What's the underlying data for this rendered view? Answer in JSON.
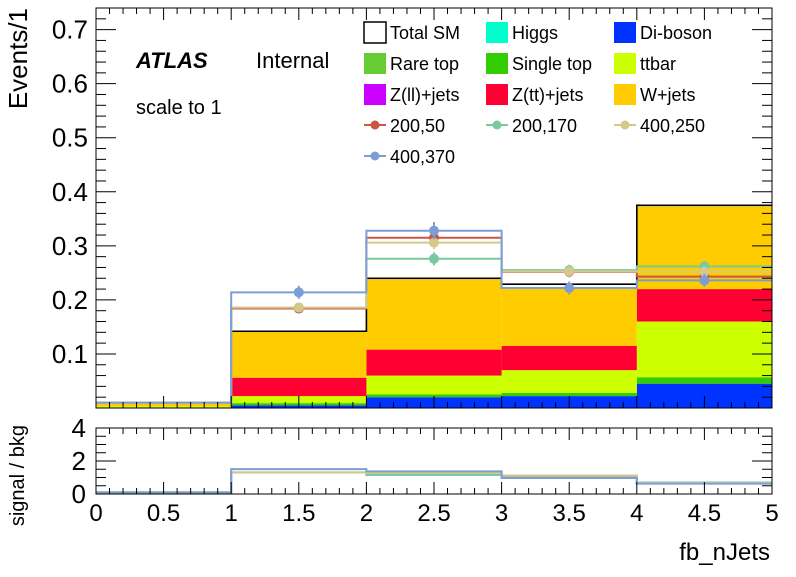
{
  "chart_data": [
    {
      "type": "bar",
      "stacked": true,
      "x_bins": [
        0,
        1,
        2,
        3,
        4,
        5
      ],
      "xlabel": "fb_nJets",
      "ylabel": "Events/1",
      "xlim": [
        0,
        5
      ],
      "ylim": [
        0,
        0.74
      ],
      "y_ticks": [
        "0.1",
        "0.2",
        "0.3",
        "0.4",
        "0.5",
        "0.6",
        "0.7"
      ],
      "texts": {
        "atlas": "ATLAS",
        "internal": "Internal",
        "scale": "scale to 1"
      },
      "legend_placement": "top-right",
      "legend": [
        {
          "label": "Total SM",
          "color": "#ffffff",
          "kind": "box"
        },
        {
          "label": "Higgs",
          "color": "#00ffcc",
          "kind": "box"
        },
        {
          "label": "Di-boson",
          "color": "#0033ff",
          "kind": "box"
        },
        {
          "label": "Rare top",
          "color": "#66cc33",
          "kind": "box"
        },
        {
          "label": "Single top",
          "color": "#33cc00",
          "kind": "box"
        },
        {
          "label": "ttbar",
          "color": "#ccff00",
          "kind": "box"
        },
        {
          "label": "Z(ll)+jets",
          "color": "#cc00ff",
          "kind": "box"
        },
        {
          "label": "Z(tt)+jets",
          "color": "#ff0033",
          "kind": "box"
        },
        {
          "label": "W+jets",
          "color": "#ffcc00",
          "kind": "box"
        },
        {
          "label": "200,50",
          "color": "#cc5544",
          "kind": "marker"
        },
        {
          "label": "200,170",
          "color": "#77c9a0",
          "kind": "marker"
        },
        {
          "label": "400,250",
          "color": "#d4c98a",
          "kind": "marker"
        },
        {
          "label": "400,370",
          "color": "#7b9ed6",
          "kind": "marker"
        }
      ],
      "background_stack": [
        {
          "name": "Di-boson",
          "color": "#0033ff",
          "values": [
            0.0,
            0.005,
            0.02,
            0.022,
            0.045
          ]
        },
        {
          "name": "Single top",
          "color": "#33cc00",
          "values": [
            0.001,
            0.004,
            0.005,
            0.006,
            0.012
          ]
        },
        {
          "name": "ttbar",
          "color": "#ccff00",
          "values": [
            0.002,
            0.013,
            0.035,
            0.042,
            0.103
          ]
        },
        {
          "name": "Z(tt)+jets",
          "color": "#ff0033",
          "values": [
            0.0,
            0.034,
            0.048,
            0.045,
            0.06
          ]
        },
        {
          "name": "W+jets",
          "color": "#ffcc00",
          "values": [
            0.007,
            0.085,
            0.13,
            0.108,
            0.153
          ]
        }
      ],
      "total_sm": [
        0.01,
        0.142,
        0.24,
        0.229,
        0.375
      ],
      "signals": [
        {
          "name": "200,50",
          "color": "#cc5544",
          "values": [
            0.01,
            0.184,
            0.315,
            0.252,
            0.243
          ],
          "errors": [
            0,
            0.007,
            0.012,
            0.01,
            0.01
          ]
        },
        {
          "name": "200,170",
          "color": "#77c9a0",
          "values": [
            0.01,
            0.186,
            0.276,
            0.255,
            0.262
          ],
          "errors": [
            0,
            0.007,
            0.012,
            0.01,
            0.01
          ]
        },
        {
          "name": "400,250",
          "color": "#d4c98a",
          "values": [
            0.01,
            0.186,
            0.306,
            0.253,
            0.252
          ],
          "errors": [
            0,
            0.007,
            0.012,
            0.01,
            0.01
          ]
        },
        {
          "name": "400,370",
          "color": "#7b9ed6",
          "values": [
            0.01,
            0.214,
            0.328,
            0.222,
            0.236
          ],
          "errors": [
            0,
            0.012,
            0.016,
            0.012,
            0.012
          ]
        }
      ]
    },
    {
      "type": "line",
      "step": true,
      "x_bins": [
        0,
        1,
        2,
        3,
        4,
        5
      ],
      "xlabel": "fb_nJets",
      "ylabel": "signal / bkg",
      "xlim": [
        0,
        5
      ],
      "ylim": [
        0,
        4
      ],
      "x_ticks": [
        "0",
        "0.5",
        "1",
        "1.5",
        "2",
        "2.5",
        "3",
        "3.5",
        "4",
        "4.5",
        "5"
      ],
      "y_ticks": [
        "0",
        "2",
        "4"
      ],
      "series": [
        {
          "name": "200,50",
          "color": "#cc5544",
          "values": [
            0.1,
            1.3,
            1.31,
            1.1,
            0.65
          ]
        },
        {
          "name": "200,170",
          "color": "#77c9a0",
          "values": [
            0.1,
            1.31,
            1.15,
            1.11,
            0.7
          ]
        },
        {
          "name": "400,250",
          "color": "#d4c98a",
          "values": [
            0.1,
            1.31,
            1.27,
            1.11,
            0.67
          ]
        },
        {
          "name": "400,370",
          "color": "#7b9ed6",
          "values": [
            0.1,
            1.51,
            1.37,
            0.97,
            0.63
          ]
        }
      ]
    }
  ]
}
